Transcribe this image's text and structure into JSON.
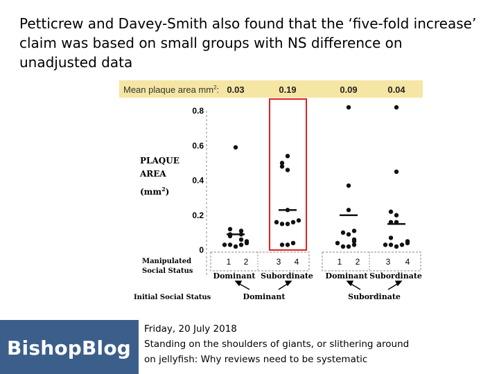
{
  "slide": {
    "title": "Petticrew and Davey-Smith also found that the ‘five-fold increase’ claim was based on small groups with NS difference on unadjusted data"
  },
  "footer": {
    "logo": "BishopBlog",
    "date": "Friday, 20 July 2018",
    "line1": "Standing on the shoulders of giants, or slithering around",
    "line2": "on jellyfish: Why reviews need to be systematic"
  },
  "colors": {
    "highlight_band": "#f5e6a4",
    "highlight_box": "#e02020",
    "logo_bg": "#3b5f8a"
  },
  "chart_data": {
    "type": "scatter",
    "ylabel_lines": [
      "PLAQUE",
      "AREA",
      "(mm",
      ")"
    ],
    "ylabel_superscript": "2",
    "ylim": [
      0,
      0.8
    ],
    "yticks": [
      "0.8",
      "0.6",
      "0.4",
      "0.2",
      "0"
    ],
    "mean_header": {
      "label": "Mean plaque area mm",
      "sup": "2",
      "colon": ":",
      "values": [
        "0.03",
        "0.19",
        "0.09",
        "0.04"
      ]
    },
    "manipulated_status_label": [
      "Manipulated",
      "Social Status"
    ],
    "initial_status_label": "Initial Social Status",
    "groups": [
      {
        "initial": "Dominant",
        "manipulated": "Dominant",
        "ticks": [
          "1",
          "2"
        ]
      },
      {
        "initial": "Dominant",
        "manipulated": "Subordinate",
        "ticks": [
          "3",
          "4"
        ]
      },
      {
        "initial": "Subordinate",
        "manipulated": "Dominant",
        "ticks": [
          "1",
          "2"
        ]
      },
      {
        "initial": "Subordinate",
        "manipulated": "Subordinate",
        "ticks": [
          "3",
          "4"
        ]
      }
    ],
    "series": [
      {
        "values": [
          0.59,
          0.12,
          0.11,
          0.09,
          0.09,
          0.08,
          0.06,
          0.05,
          0.04,
          0.03,
          0.03,
          0.03,
          0.02
        ],
        "mean_bar": 0.09
      },
      {
        "values": [
          0.54,
          0.5,
          0.48,
          0.46,
          0.23,
          0.17,
          0.16,
          0.16,
          0.15,
          0.15,
          0.04,
          0.03,
          0.03
        ],
        "mean_bar": 0.23
      },
      {
        "values": [
          0.82,
          0.37,
          0.23,
          0.11,
          0.1,
          0.09,
          0.06,
          0.05,
          0.04,
          0.03,
          0.02,
          0.02
        ],
        "mean_bar": 0.2
      },
      {
        "values": [
          0.82,
          0.45,
          0.22,
          0.2,
          0.16,
          0.16,
          0.07,
          0.05,
          0.04,
          0.03,
          0.03,
          0.03,
          0.02
        ],
        "mean_bar": 0.15
      }
    ]
  }
}
